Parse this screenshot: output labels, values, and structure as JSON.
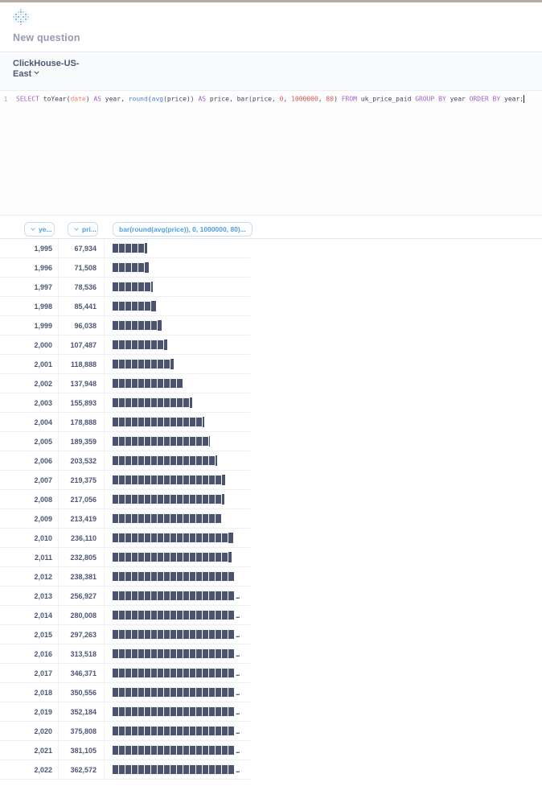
{
  "header": {
    "logo_icon": "metabase-dots-logo",
    "page_title": "New question"
  },
  "database_bar": {
    "name": "ClickHouse-US-East",
    "chevron_icon": "chevron-down-icon"
  },
  "editor": {
    "line_number": "1",
    "sql_text": "SELECT toYear(date) AS year, round(avg(price)) AS price, bar(price, 0, 1000000, 80) FROM uk_price_paid GROUP BY year ORDER BY year;",
    "tokens": [
      {
        "text": "SELECT",
        "type": "keyword"
      },
      {
        "text": " toYear(",
        "type": "plain"
      },
      {
        "text": "date",
        "type": "atom"
      },
      {
        "text": ") ",
        "type": "plain"
      },
      {
        "text": "AS",
        "type": "keyword"
      },
      {
        "text": " year, ",
        "type": "plain"
      },
      {
        "text": "round",
        "type": "function"
      },
      {
        "text": "(",
        "type": "plain"
      },
      {
        "text": "avg",
        "type": "function"
      },
      {
        "text": "(price)) ",
        "type": "plain"
      },
      {
        "text": "AS",
        "type": "keyword"
      },
      {
        "text": " price, bar(price, ",
        "type": "plain"
      },
      {
        "text": "0",
        "type": "number"
      },
      {
        "text": ", ",
        "type": "plain"
      },
      {
        "text": "1000000",
        "type": "number"
      },
      {
        "text": ", ",
        "type": "plain"
      },
      {
        "text": "80",
        "type": "number"
      },
      {
        "text": ") ",
        "type": "plain"
      },
      {
        "text": "FROM",
        "type": "keyword"
      },
      {
        "text": " uk_price_paid ",
        "type": "plain"
      },
      {
        "text": "GROUP BY",
        "type": "keyword"
      },
      {
        "text": " year ",
        "type": "plain"
      },
      {
        "text": "ORDER BY",
        "type": "keyword"
      },
      {
        "text": " year;",
        "type": "plain"
      }
    ]
  },
  "results": {
    "columns": [
      {
        "label": "ye...",
        "has_chevron": true
      },
      {
        "label": "pri...",
        "has_chevron": true
      },
      {
        "label": "bar(round(avg(price)), 0, 1000000, 80)...",
        "has_chevron": false
      }
    ],
    "bar_color": "#495371",
    "bar_scale": {
      "min": 0,
      "max": 1000000,
      "width_chars": 80,
      "visible_units": 19.25
    },
    "rows": [
      {
        "year": "1,995",
        "price": "67,934",
        "bar_units": 5.43
      },
      {
        "year": "1,996",
        "price": "71,508",
        "bar_units": 5.72
      },
      {
        "year": "1,997",
        "price": "78,536",
        "bar_units": 6.28
      },
      {
        "year": "1,998",
        "price": "85,441",
        "bar_units": 6.84
      },
      {
        "year": "1,999",
        "price": "96,038",
        "bar_units": 7.68
      },
      {
        "year": "2,000",
        "price": "107,487",
        "bar_units": 8.6
      },
      {
        "year": "2,001",
        "price": "118,888",
        "bar_units": 9.51
      },
      {
        "year": "2,002",
        "price": "137,948",
        "bar_units": 11.04
      },
      {
        "year": "2,003",
        "price": "155,893",
        "bar_units": 12.47
      },
      {
        "year": "2,004",
        "price": "178,888",
        "bar_units": 14.31
      },
      {
        "year": "2,005",
        "price": "189,359",
        "bar_units": 15.15
      },
      {
        "year": "2,006",
        "price": "203,532",
        "bar_units": 16.28
      },
      {
        "year": "2,007",
        "price": "219,375",
        "bar_units": 17.55
      },
      {
        "year": "2,008",
        "price": "217,056",
        "bar_units": 17.36
      },
      {
        "year": "2,009",
        "price": "213,419",
        "bar_units": 17.07
      },
      {
        "year": "2,010",
        "price": "236,110",
        "bar_units": 18.89
      },
      {
        "year": "2,011",
        "price": "232,805",
        "bar_units": 18.62
      },
      {
        "year": "2,012",
        "price": "238,381",
        "bar_units": 19.07
      },
      {
        "year": "2,013",
        "price": "256,927",
        "bar_units": 20.55
      },
      {
        "year": "2,014",
        "price": "280,008",
        "bar_units": 22.4
      },
      {
        "year": "2,015",
        "price": "297,263",
        "bar_units": 23.78
      },
      {
        "year": "2,016",
        "price": "313,518",
        "bar_units": 25.08
      },
      {
        "year": "2,017",
        "price": "346,371",
        "bar_units": 27.71
      },
      {
        "year": "2,018",
        "price": "350,556",
        "bar_units": 28.04
      },
      {
        "year": "2,019",
        "price": "352,184",
        "bar_units": 28.17
      },
      {
        "year": "2,020",
        "price": "375,808",
        "bar_units": 30.06
      },
      {
        "year": "2,021",
        "price": "381,105",
        "bar_units": 30.49
      },
      {
        "year": "2,022",
        "price": "362,572",
        "bar_units": 29.01
      }
    ]
  }
}
